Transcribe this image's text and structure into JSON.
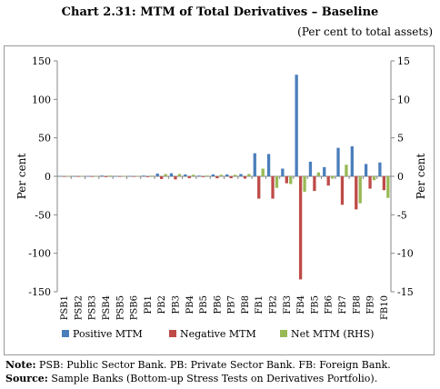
{
  "header": {
    "title": "Chart 2.31: MTM  of Total Derivatives – Baseline",
    "subtitle": "(Per cent to total assets)"
  },
  "notes": {
    "note_label": "Note:",
    "note_text": " PSB: Public Sector Bank.  PB: Private Sector Bank.  FB: Foreign Bank.",
    "source_label": "Source:",
    "source_text": " Sample Banks (Bottom-up Stress Tests on Derivatives Portfolio)."
  },
  "chart_data": {
    "type": "bar",
    "categories": [
      "PSB1",
      "PSB2",
      "PSB3",
      "PSB4",
      "PSB5",
      "PSB6",
      "PB1",
      "PB2",
      "PB3",
      "PB4",
      "PB5",
      "PB6",
      "PB7",
      "PB8",
      "FB1",
      "FB2",
      "FB3",
      "FB4",
      "FB5",
      "FB6",
      "FB7",
      "FB8",
      "FB9",
      "FB10"
    ],
    "ylabel": "Per cent",
    "y2label": "Per cent",
    "ylim": [
      -150,
      150
    ],
    "y2lim": [
      -15,
      15
    ],
    "yticks": [
      150,
      100,
      50,
      0,
      -50,
      -100,
      -150
    ],
    "y2ticks": [
      15,
      10,
      5,
      0,
      -5,
      -10,
      -15
    ],
    "series": [
      {
        "name": "Positive MTM",
        "axis": "left",
        "color": "#4a7ebb",
        "values": [
          0.5,
          0.3,
          0.3,
          1.0,
          0.3,
          0.5,
          1.0,
          3.5,
          4.0,
          2.5,
          1.0,
          2.5,
          2.5,
          3.0,
          30,
          29,
          10,
          132,
          19,
          12,
          37,
          39,
          16,
          18
        ]
      },
      {
        "name": "Negative MTM",
        "axis": "left",
        "color": "#be4b48",
        "values": [
          -0.5,
          -0.3,
          -0.3,
          -1.0,
          -0.3,
          -0.5,
          -1.0,
          -3.5,
          -4.0,
          -2.5,
          -1.0,
          -2.5,
          -2.5,
          -3.0,
          -29,
          -29,
          -9,
          -134,
          -19,
          -12,
          -37,
          -43,
          -16,
          -18
        ]
      },
      {
        "name": "Net MTM (RHS)",
        "axis": "right",
        "color": "#98b954",
        "values": [
          0.05,
          0.05,
          0.05,
          0.1,
          0.05,
          0.05,
          0.1,
          0.3,
          0.3,
          0.2,
          0.1,
          0.2,
          0.2,
          0.3,
          1.0,
          -1.5,
          -1.0,
          -2.0,
          0.5,
          -0.3,
          1.5,
          -3.5,
          -0.5,
          -2.8
        ]
      }
    ],
    "legend_position": "bottom"
  }
}
